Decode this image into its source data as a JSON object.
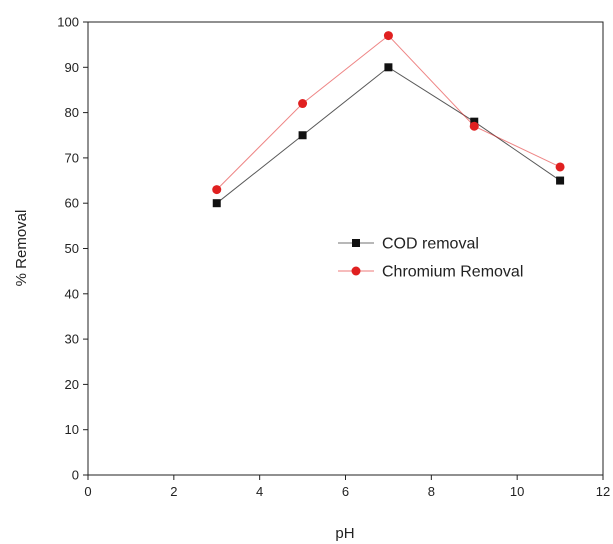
{
  "chart_data": {
    "type": "line",
    "xlabel": "pH",
    "ylabel": "% Removal",
    "xlim": [
      0,
      12
    ],
    "ylim": [
      0,
      100
    ],
    "xticks": [
      0,
      2,
      4,
      6,
      8,
      10,
      12
    ],
    "yticks": [
      0,
      10,
      20,
      30,
      40,
      50,
      60,
      70,
      80,
      90,
      100
    ],
    "grid": false,
    "legend_position": "center-right",
    "x": [
      3,
      5,
      7,
      9,
      11
    ],
    "series": [
      {
        "name": "COD removal",
        "values": [
          60,
          75,
          90,
          78,
          65
        ],
        "color": "#111111",
        "marker": "square"
      },
      {
        "name": "Chromium Removal",
        "values": [
          63,
          82,
          97,
          77,
          68
        ],
        "color": "#e02020",
        "marker": "circle"
      }
    ]
  }
}
